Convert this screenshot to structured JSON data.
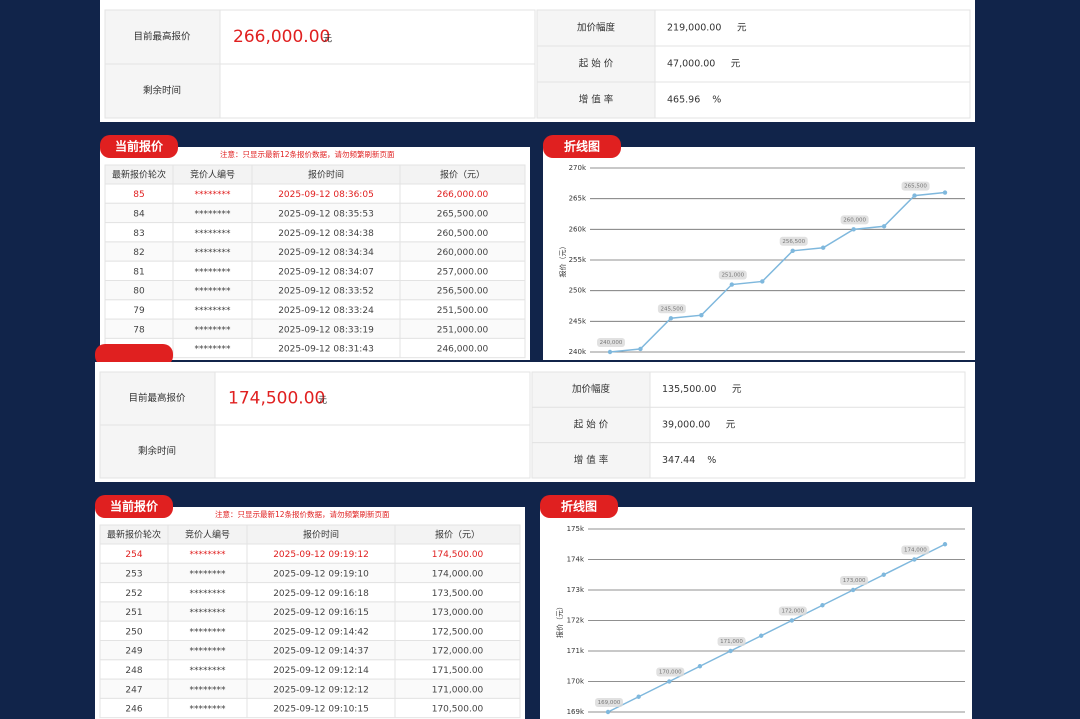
{
  "chart_data": [
    {
      "type": "line",
      "title": "折线图",
      "y_label": "报价（元）",
      "color": "#7fb8dd",
      "values": [
        240000,
        240500,
        245500,
        246000,
        251000,
        251500,
        256500,
        257000,
        260000,
        260500,
        265500,
        266000
      ],
      "value_labels": [
        "240,000",
        null,
        "245,500",
        null,
        "251,000",
        null,
        "256,500",
        null,
        "260,000",
        null,
        "265,500",
        null
      ],
      "ylim": [
        240000,
        270000
      ],
      "yticks": [
        {
          "value": 240000,
          "label": "240k"
        },
        {
          "value": 245000,
          "label": "245k"
        },
        {
          "value": 250000,
          "label": "250k"
        },
        {
          "value": 255000,
          "label": "255k"
        },
        {
          "value": 260000,
          "label": "260k"
        },
        {
          "value": 265000,
          "label": "265k"
        },
        {
          "value": 270000,
          "label": "270k"
        }
      ],
      "grid": true
    },
    {
      "type": "line",
      "title": "折线图",
      "y_label": "报价（元）",
      "color": "#7fb8dd",
      "values": [
        169000,
        169500,
        170000,
        170500,
        171000,
        171500,
        172000,
        172500,
        173000,
        173500,
        174000,
        174500
      ],
      "value_labels": [
        "169,000",
        null,
        "170,000",
        null,
        "171,000",
        null,
        "172,000",
        null,
        "173,000",
        null,
        "174,000",
        null
      ],
      "ylim": [
        169000,
        175000
      ],
      "yticks": [
        {
          "value": 169000,
          "label": "169k"
        },
        {
          "value": 170000,
          "label": "170k"
        },
        {
          "value": 171000,
          "label": "171k"
        },
        {
          "value": 172000,
          "label": "172k"
        },
        {
          "value": 173000,
          "label": "173k"
        },
        {
          "value": 174000,
          "label": "174k"
        },
        {
          "value": 175000,
          "label": "175k"
        }
      ],
      "grid": true
    }
  ],
  "panels": [
    {
      "info": {
        "highest_label": "目前最高报价",
        "highest_value": "266,000.00",
        "highest_unit": "元",
        "remaining_label": "剩余时间",
        "rows": [
          [
            "加价幅度",
            "219,000.00",
            "元"
          ],
          [
            "起 始 价",
            "47,000.00",
            "元"
          ],
          [
            "增 值 率",
            "465.96",
            "%"
          ]
        ]
      },
      "bids": {
        "tab": "当前报价",
        "note": "注意：只显示最新12条报价数据，请勿频繁刷新页面",
        "headers": [
          "最新报价轮次",
          "竞价人编号",
          "报价时间",
          "报价（元）"
        ],
        "rows": [
          [
            "85",
            "********",
            "2025-09-12 08:36:05",
            "266,000.00"
          ],
          [
            "84",
            "********",
            "2025-09-12 08:35:53",
            "265,500.00"
          ],
          [
            "83",
            "********",
            "2025-09-12 08:34:38",
            "260,500.00"
          ],
          [
            "82",
            "********",
            "2025-09-12 08:34:34",
            "260,000.00"
          ],
          [
            "81",
            "********",
            "2025-09-12 08:34:07",
            "257,000.00"
          ],
          [
            "80",
            "********",
            "2025-09-12 08:33:52",
            "256,500.00"
          ],
          [
            "79",
            "********",
            "2025-09-12 08:33:24",
            "251,500.00"
          ],
          [
            "78",
            "********",
            "2025-09-12 08:33:19",
            "251,000.00"
          ],
          [
            "77",
            "********",
            "2025-09-12 08:31:43",
            "246,000.00"
          ]
        ]
      }
    },
    {
      "info": {
        "highest_label": "目前最高报价",
        "highest_value": "174,500.00",
        "highest_unit": "元",
        "remaining_label": "剩余时间",
        "rows": [
          [
            "加价幅度",
            "135,500.00",
            "元"
          ],
          [
            "起 始 价",
            "39,000.00",
            "元"
          ],
          [
            "增 值 率",
            "347.44",
            "%"
          ]
        ]
      },
      "bids": {
        "tab": "当前报价",
        "note": "注意：只显示最新12条报价数据，请勿频繁刷新页面",
        "headers": [
          "最新报价轮次",
          "竞价人编号",
          "报价时间",
          "报价（元）"
        ],
        "rows": [
          [
            "254",
            "********",
            "2025-09-12 09:19:12",
            "174,500.00"
          ],
          [
            "253",
            "********",
            "2025-09-12 09:19:10",
            "174,000.00"
          ],
          [
            "252",
            "********",
            "2025-09-12 09:16:18",
            "173,500.00"
          ],
          [
            "251",
            "********",
            "2025-09-12 09:16:15",
            "173,000.00"
          ],
          [
            "250",
            "********",
            "2025-09-12 09:14:42",
            "172,500.00"
          ],
          [
            "249",
            "********",
            "2025-09-12 09:14:37",
            "172,000.00"
          ],
          [
            "248",
            "********",
            "2025-09-12 09:12:14",
            "171,500.00"
          ],
          [
            "247",
            "********",
            "2025-09-12 09:12:12",
            "171,000.00"
          ],
          [
            "246",
            "********",
            "2025-09-12 09:10:15",
            "170,500.00"
          ]
        ]
      }
    }
  ]
}
